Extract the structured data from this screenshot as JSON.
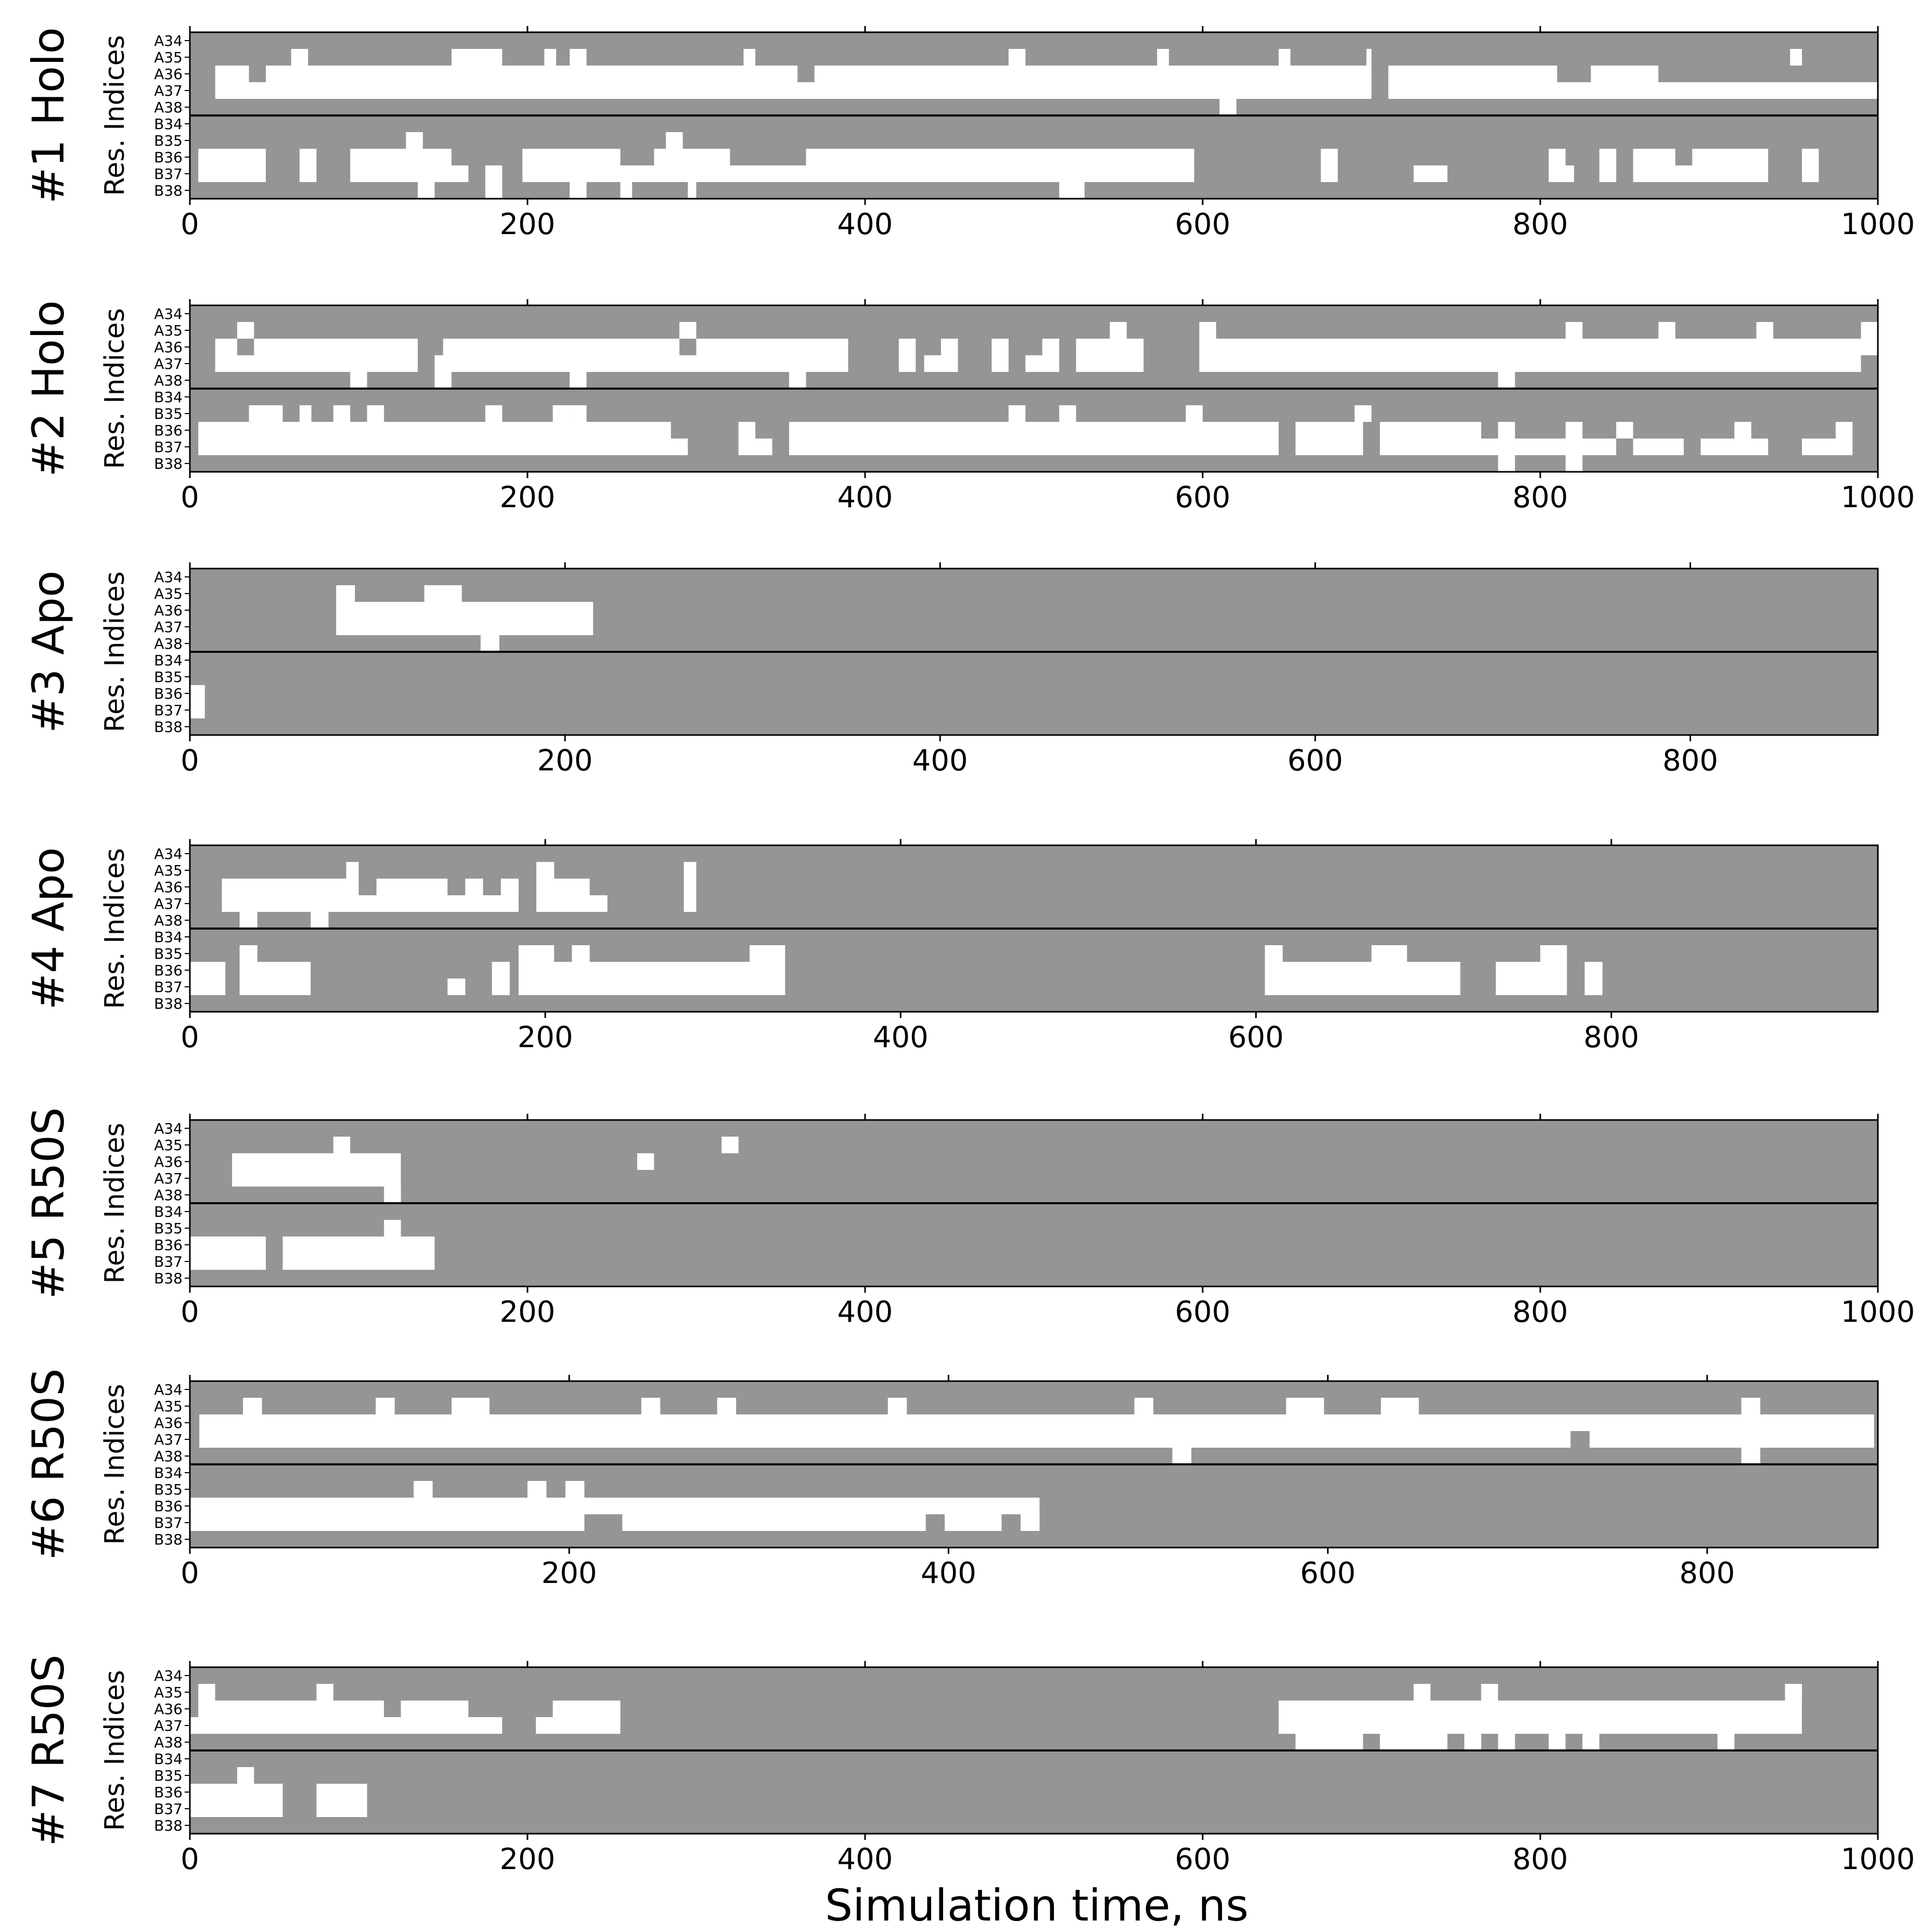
{
  "colors": {
    "occupied": "#ffffff",
    "empty": "#959595",
    "frame": "#000000"
  },
  "residues": [
    "A34",
    "A35",
    "A36",
    "A37",
    "A38",
    "B34",
    "B35",
    "B36",
    "B37",
    "B38"
  ],
  "ylabel": "Res. Indices",
  "xlabel": "Simulation time, ns",
  "chart_data": [
    {
      "type": "heatmap",
      "title": "#1 Holo",
      "xlim": [
        0,
        1000
      ],
      "xticks": [
        0,
        200,
        400,
        600,
        800,
        1000
      ],
      "runs": [
        [],
        [
          [
            60,
            70
          ],
          [
            155,
            185
          ],
          [
            210,
            217
          ],
          [
            225,
            235
          ],
          [
            328,
            335
          ],
          [
            485,
            495
          ],
          [
            573,
            580
          ],
          [
            645,
            652
          ],
          [
            697,
            700
          ],
          [
            948,
            955
          ]
        ],
        [
          [
            15,
            35
          ],
          [
            45,
            360
          ],
          [
            370,
            700
          ],
          [
            710,
            810
          ],
          [
            830,
            870
          ]
        ],
        [
          [
            15,
            700
          ],
          [
            710,
            1000
          ]
        ],
        [
          [
            610,
            620
          ]
        ],
        [],
        [
          [
            128,
            138
          ],
          [
            282,
            292
          ]
        ],
        [
          [
            5,
            45
          ],
          [
            65,
            75
          ],
          [
            95,
            155
          ],
          [
            197,
            255
          ],
          [
            275,
            320
          ],
          [
            365,
            595
          ],
          [
            670,
            680
          ],
          [
            805,
            815
          ],
          [
            835,
            845
          ],
          [
            855,
            880
          ],
          [
            890,
            935
          ],
          [
            955,
            965
          ]
        ],
        [
          [
            5,
            45
          ],
          [
            65,
            75
          ],
          [
            95,
            165
          ],
          [
            175,
            185
          ],
          [
            197,
            595
          ],
          [
            670,
            680
          ],
          [
            725,
            745
          ],
          [
            805,
            820
          ],
          [
            835,
            845
          ],
          [
            855,
            935
          ],
          [
            955,
            965
          ]
        ],
        [
          [
            135,
            145
          ],
          [
            175,
            185
          ],
          [
            225,
            235
          ],
          [
            255,
            262
          ],
          [
            295,
            300
          ],
          [
            515,
            530
          ]
        ]
      ]
    },
    {
      "type": "heatmap",
      "title": "#2 Holo",
      "xlim": [
        0,
        1000
      ],
      "xticks": [
        0,
        200,
        400,
        600,
        800,
        1000
      ],
      "runs": [
        [],
        [
          [
            28,
            38
          ],
          [
            290,
            300
          ],
          [
            545,
            555
          ],
          [
            598,
            608
          ],
          [
            815,
            825
          ],
          [
            870,
            880
          ],
          [
            928,
            938
          ],
          [
            990,
            1000
          ]
        ],
        [
          [
            15,
            28
          ],
          [
            38,
            135
          ],
          [
            150,
            290
          ],
          [
            300,
            390
          ],
          [
            420,
            430
          ],
          [
            445,
            455
          ],
          [
            475,
            485
          ],
          [
            505,
            515
          ],
          [
            525,
            565
          ],
          [
            598,
            1000
          ]
        ],
        [
          [
            15,
            135
          ],
          [
            145,
            390
          ],
          [
            420,
            430
          ],
          [
            435,
            455
          ],
          [
            475,
            485
          ],
          [
            495,
            515
          ],
          [
            525,
            565
          ],
          [
            598,
            990
          ]
        ],
        [
          [
            95,
            105
          ],
          [
            145,
            155
          ],
          [
            225,
            235
          ],
          [
            355,
            365
          ],
          [
            775,
            785
          ]
        ],
        [],
        [
          [
            35,
            55
          ],
          [
            65,
            72
          ],
          [
            85,
            95
          ],
          [
            105,
            115
          ],
          [
            175,
            185
          ],
          [
            215,
            225
          ],
          [
            225,
            235
          ],
          [
            485,
            495
          ],
          [
            515,
            525
          ],
          [
            590,
            600
          ],
          [
            690,
            700
          ]
        ],
        [
          [
            5,
            285
          ],
          [
            325,
            335
          ],
          [
            355,
            645
          ],
          [
            655,
            695
          ],
          [
            705,
            765
          ],
          [
            775,
            785
          ],
          [
            815,
            825
          ],
          [
            845,
            855
          ],
          [
            915,
            925
          ],
          [
            975,
            985
          ]
        ],
        [
          [
            5,
            295
          ],
          [
            325,
            345
          ],
          [
            355,
            645
          ],
          [
            655,
            695
          ],
          [
            705,
            845
          ],
          [
            855,
            885
          ],
          [
            895,
            935
          ],
          [
            955,
            985
          ]
        ],
        [
          [
            775,
            785
          ],
          [
            815,
            825
          ]
        ]
      ]
    },
    {
      "type": "heatmap",
      "title": "#3 Apo",
      "xlim": [
        0,
        900
      ],
      "xticks": [
        0,
        200,
        400,
        600,
        800
      ],
      "runs": [
        [],
        [
          [
            78,
            88
          ],
          [
            125,
            145
          ]
        ],
        [
          [
            78,
            215
          ]
        ],
        [
          [
            78,
            215
          ]
        ],
        [
          [
            155,
            165
          ]
        ],
        [],
        [],
        [
          [
            0,
            8
          ]
        ],
        [
          [
            0,
            8
          ]
        ],
        []
      ]
    },
    {
      "type": "heatmap",
      "title": "#4 Apo",
      "xlim": [
        0,
        950
      ],
      "xticks": [
        0,
        200,
        400,
        600,
        800
      ],
      "runs": [
        [],
        [
          [
            88,
            95
          ],
          [
            195,
            205
          ],
          [
            278,
            285
          ]
        ],
        [
          [
            18,
            95
          ],
          [
            105,
            145
          ],
          [
            155,
            165
          ],
          [
            175,
            185
          ],
          [
            195,
            225
          ],
          [
            278,
            285
          ]
        ],
        [
          [
            18,
            185
          ],
          [
            195,
            235
          ],
          [
            278,
            285
          ]
        ],
        [
          [
            28,
            38
          ],
          [
            68,
            78
          ]
        ],
        [],
        [
          [
            28,
            38
          ],
          [
            185,
            205
          ],
          [
            215,
            225
          ],
          [
            315,
            335
          ],
          [
            605,
            615
          ],
          [
            665,
            685
          ],
          [
            760,
            775
          ]
        ],
        [
          [
            0,
            20
          ],
          [
            28,
            68
          ],
          [
            170,
            180
          ],
          [
            185,
            335
          ],
          [
            605,
            715
          ],
          [
            735,
            775
          ],
          [
            785,
            795
          ]
        ],
        [
          [
            0,
            20
          ],
          [
            28,
            68
          ],
          [
            145,
            155
          ],
          [
            170,
            180
          ],
          [
            185,
            335
          ],
          [
            605,
            715
          ],
          [
            735,
            775
          ],
          [
            785,
            795
          ]
        ],
        []
      ]
    },
    {
      "type": "heatmap",
      "title": "#5 R50S",
      "xlim": [
        0,
        1000
      ],
      "xticks": [
        0,
        200,
        400,
        600,
        800,
        1000
      ],
      "runs": [
        [],
        [
          [
            85,
            95
          ],
          [
            315,
            325
          ]
        ],
        [
          [
            25,
            125
          ],
          [
            265,
            275
          ]
        ],
        [
          [
            25,
            125
          ]
        ],
        [
          [
            115,
            125
          ]
        ],
        [],
        [
          [
            115,
            125
          ]
        ],
        [
          [
            0,
            45
          ],
          [
            55,
            145
          ]
        ],
        [
          [
            0,
            45
          ],
          [
            55,
            145
          ]
        ],
        []
      ]
    },
    {
      "type": "heatmap",
      "title": "#6 R50S",
      "xlim": [
        0,
        890
      ],
      "xticks": [
        0,
        200,
        400,
        600,
        800
      ],
      "runs": [
        [],
        [
          [
            28,
            38
          ],
          [
            98,
            108
          ],
          [
            138,
            158
          ],
          [
            238,
            248
          ],
          [
            278,
            288
          ],
          [
            368,
            378
          ],
          [
            498,
            508
          ],
          [
            578,
            598
          ],
          [
            628,
            648
          ],
          [
            818,
            828
          ]
        ],
        [
          [
            5,
            888
          ]
        ],
        [
          [
            5,
            728
          ],
          [
            738,
            888
          ]
        ],
        [
          [
            518,
            528
          ],
          [
            818,
            828
          ]
        ],
        [],
        [
          [
            118,
            128
          ],
          [
            178,
            188
          ],
          [
            198,
            208
          ]
        ],
        [
          [
            0,
            448
          ]
        ],
        [
          [
            0,
            208
          ],
          [
            228,
            388
          ],
          [
            398,
            428
          ],
          [
            438,
            448
          ]
        ],
        []
      ]
    },
    {
      "type": "heatmap",
      "title": "#7 R50S",
      "xlim": [
        0,
        1000
      ],
      "xticks": [
        0,
        200,
        400,
        600,
        800,
        1000
      ],
      "runs": [
        [],
        [
          [
            5,
            15
          ],
          [
            75,
            85
          ],
          [
            725,
            735
          ],
          [
            765,
            775
          ],
          [
            945,
            955
          ]
        ],
        [
          [
            5,
            115
          ],
          [
            125,
            165
          ],
          [
            215,
            255
          ],
          [
            645,
            955
          ]
        ],
        [
          [
            0,
            185
          ],
          [
            205,
            255
          ],
          [
            645,
            955
          ]
        ],
        [
          [
            655,
            695
          ],
          [
            705,
            745
          ],
          [
            755,
            765
          ],
          [
            775,
            785
          ],
          [
            805,
            815
          ],
          [
            825,
            835
          ],
          [
            905,
            915
          ]
        ],
        [],
        [
          [
            28,
            38
          ]
        ],
        [
          [
            0,
            55
          ],
          [
            75,
            105
          ]
        ],
        [
          [
            0,
            55
          ],
          [
            75,
            105
          ]
        ],
        []
      ]
    }
  ]
}
